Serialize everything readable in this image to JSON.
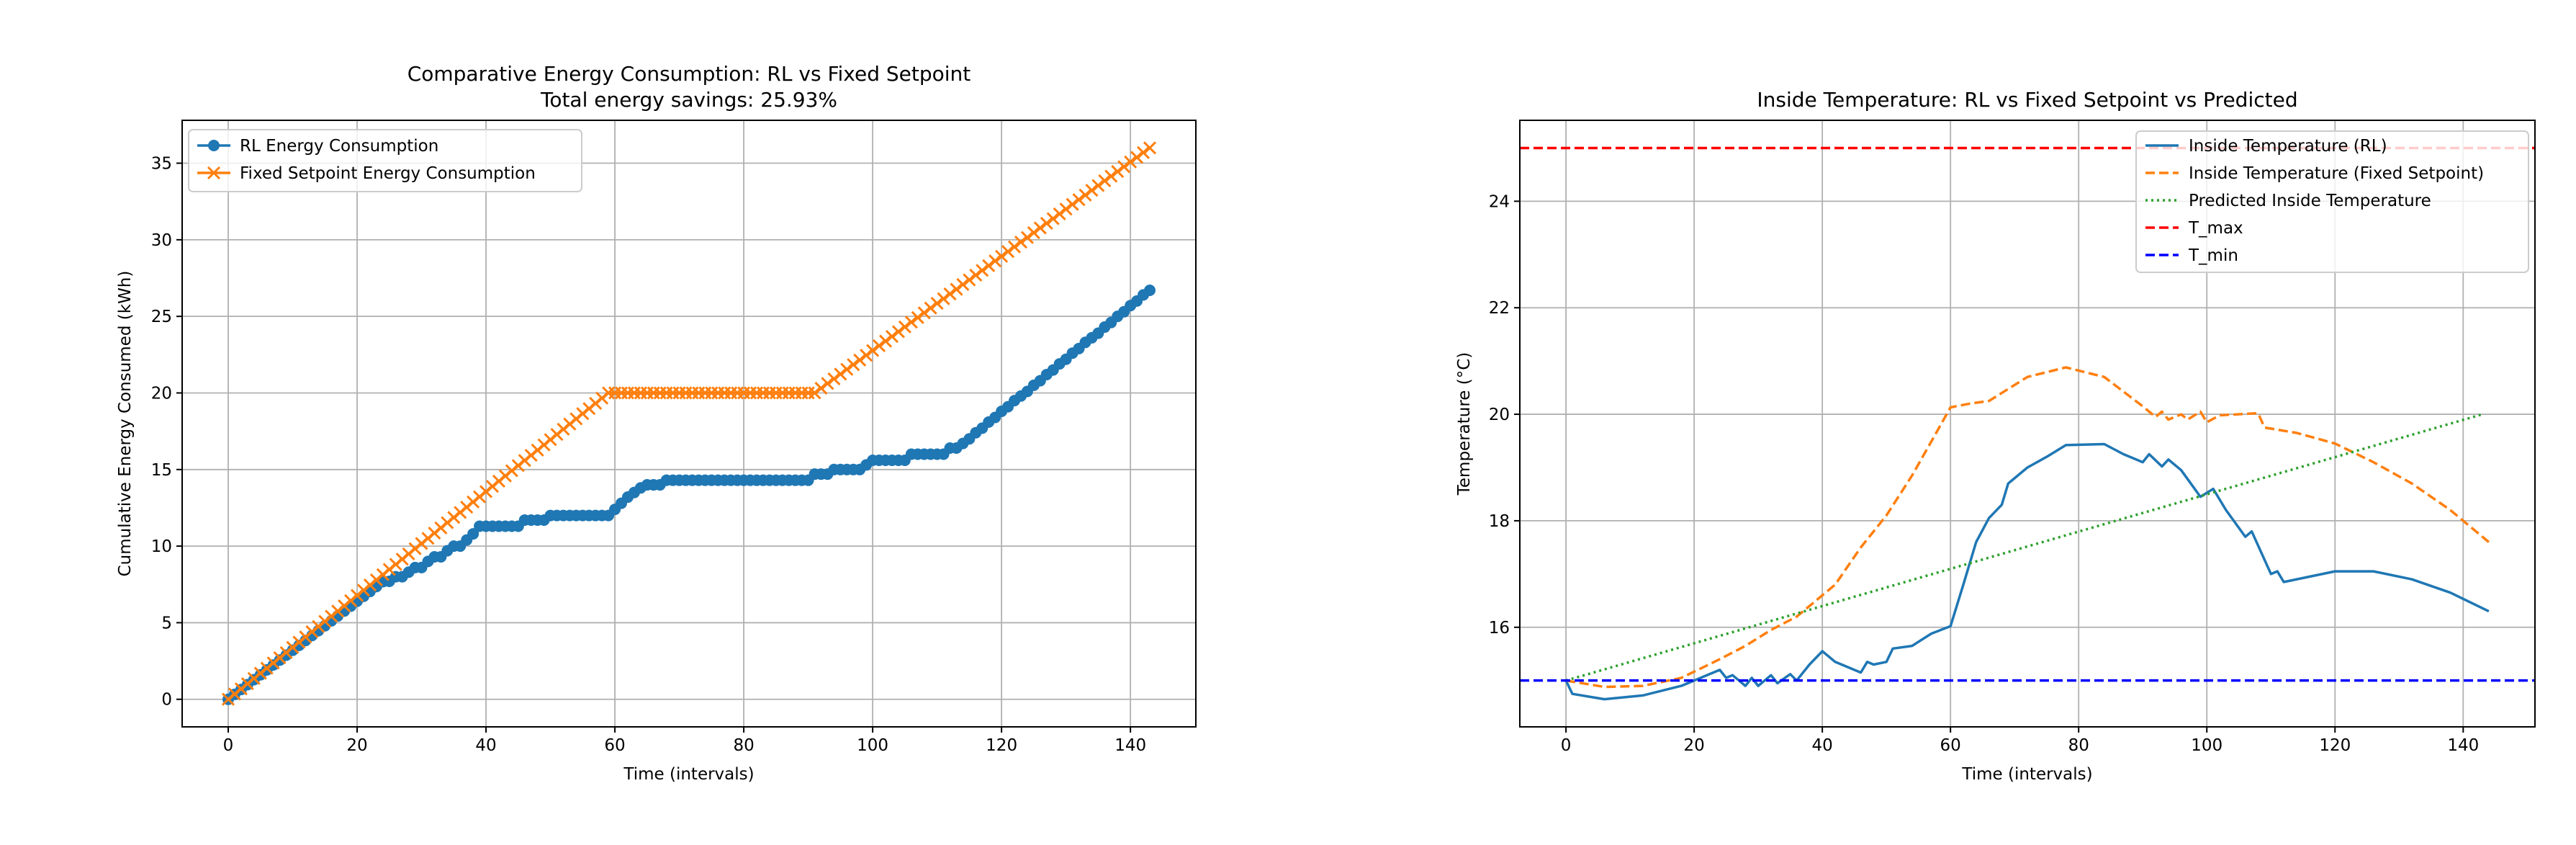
{
  "chart_data": [
    {
      "type": "line",
      "title": "Comparative Energy Consumption: RL vs Fixed Setpoint",
      "subtitle": "Total energy savings: 25.93%",
      "xlabel": "Time (intervals)",
      "ylabel": "Cumulative Energy Consumed (kWh)",
      "xlim": [
        -7.15,
        150.15
      ],
      "ylim": [
        -1.8,
        37.8
      ],
      "xticks": [
        0,
        20,
        40,
        60,
        80,
        100,
        120,
        140
      ],
      "yticks": [
        0,
        5,
        10,
        15,
        20,
        25,
        30,
        35
      ],
      "grid": true,
      "legend_position": "top-left",
      "x_start": 0,
      "x_step": 1,
      "series": [
        {
          "name": "RL Energy Consumption",
          "color": "#1f77b4",
          "marker": "circle",
          "values": [
            0,
            0.32,
            0.64,
            0.96,
            1.28,
            1.6,
            1.92,
            2.24,
            2.56,
            2.88,
            3.2,
            3.52,
            3.84,
            4.16,
            4.48,
            4.8,
            5.12,
            5.44,
            5.76,
            6.08,
            6.4,
            6.72,
            7.04,
            7.36,
            7.68,
            7.7,
            8.0,
            8.0,
            8.3,
            8.6,
            8.6,
            9.0,
            9.3,
            9.3,
            9.7,
            10.0,
            10.0,
            10.4,
            10.8,
            11.3,
            11.3,
            11.3,
            11.3,
            11.3,
            11.3,
            11.3,
            11.7,
            11.7,
            11.7,
            11.7,
            12.0,
            12.0,
            12.0,
            12.0,
            12.0,
            12.0,
            12.0,
            12.0,
            12.0,
            12.0,
            12.4,
            12.8,
            13.2,
            13.5,
            13.8,
            14.0,
            14.0,
            14.0,
            14.3,
            14.3,
            14.3,
            14.3,
            14.3,
            14.3,
            14.3,
            14.3,
            14.3,
            14.3,
            14.3,
            14.3,
            14.3,
            14.3,
            14.3,
            14.3,
            14.3,
            14.3,
            14.3,
            14.3,
            14.3,
            14.3,
            14.3,
            14.7,
            14.7,
            14.7,
            15.0,
            15.0,
            15.0,
            15.0,
            15.0,
            15.3,
            15.6,
            15.6,
            15.6,
            15.6,
            15.6,
            15.6,
            16.0,
            16.0,
            16.0,
            16.0,
            16.0,
            16.0,
            16.4,
            16.4,
            16.7,
            17.0,
            17.4,
            17.7,
            18.1,
            18.4,
            18.8,
            19.1,
            19.5,
            19.8,
            20.1,
            20.5,
            20.8,
            21.2,
            21.5,
            21.9,
            22.2,
            22.6,
            22.9,
            23.3,
            23.6,
            23.9,
            24.3,
            24.6,
            25.0,
            25.3,
            25.7,
            26.0,
            26.4,
            26.7
          ]
        },
        {
          "name": "Fixed Setpoint Energy Consumption",
          "color": "#ff7f0e",
          "marker": "x",
          "values": [
            0,
            0.34,
            0.68,
            1.02,
            1.36,
            1.7,
            2.03,
            2.37,
            2.71,
            3.05,
            3.39,
            3.73,
            4.07,
            4.41,
            4.75,
            5.09,
            5.42,
            5.76,
            6.1,
            6.44,
            6.78,
            7.12,
            7.46,
            7.8,
            8.14,
            8.48,
            8.81,
            9.15,
            9.49,
            9.83,
            10.17,
            10.51,
            10.85,
            11.19,
            11.53,
            11.87,
            12.2,
            12.54,
            12.88,
            13.22,
            13.56,
            13.9,
            14.24,
            14.58,
            14.92,
            15.26,
            15.59,
            15.93,
            16.27,
            16.61,
            16.95,
            17.29,
            17.63,
            17.97,
            18.31,
            18.65,
            18.98,
            19.32,
            19.66,
            20.0,
            20,
            20,
            20,
            20,
            20,
            20,
            20,
            20,
            20,
            20,
            20,
            20,
            20,
            20,
            20,
            20,
            20,
            20,
            20,
            20,
            20,
            20,
            20,
            20,
            20,
            20,
            20,
            20,
            20,
            20,
            20,
            20,
            20.31,
            20.62,
            20.92,
            21.23,
            21.54,
            21.85,
            22.15,
            22.46,
            22.77,
            23.08,
            23.38,
            23.69,
            24.0,
            24.31,
            24.62,
            24.92,
            25.23,
            25.54,
            25.85,
            26.15,
            26.46,
            26.77,
            27.08,
            27.38,
            27.69,
            28.0,
            28.31,
            28.62,
            28.92,
            29.23,
            29.54,
            29.85,
            30.15,
            30.46,
            30.77,
            31.08,
            31.38,
            31.69,
            32.0,
            32.31,
            32.62,
            32.92,
            33.23,
            33.54,
            33.85,
            34.15,
            34.46,
            34.77,
            35.08,
            35.38,
            35.69,
            36.0
          ]
        }
      ]
    },
    {
      "type": "line",
      "title": "Inside Temperature: RL vs Fixed Setpoint vs Predicted",
      "xlabel": "Time (intervals)",
      "ylabel": "Temperature (°C)",
      "xlim": [
        -7.2,
        151.2
      ],
      "ylim": [
        14.13,
        25.52
      ],
      "xticks": [
        0,
        20,
        40,
        60,
        80,
        100,
        120,
        140
      ],
      "yticks": [
        16,
        18,
        20,
        22,
        24
      ],
      "grid": true,
      "legend_position": "top-right",
      "series": [
        {
          "name": "Inside Temperature (RL)",
          "color": "#1f77b4",
          "style": "solid",
          "x": [
            0,
            1,
            6,
            12,
            18,
            20,
            24,
            25,
            26,
            27,
            28,
            29,
            30,
            32,
            33,
            35,
            36,
            38,
            40,
            42,
            46,
            47,
            48,
            50,
            51,
            54,
            57,
            60,
            62,
            64,
            66,
            68,
            69,
            72,
            75,
            78,
            84,
            87,
            90,
            91,
            93,
            94,
            96,
            99,
            101,
            103,
            106,
            107,
            110,
            111,
            112,
            116,
            120,
            126,
            132,
            138,
            144
          ],
          "y": [
            15.0,
            14.75,
            14.65,
            14.72,
            14.9,
            15.0,
            15.2,
            15.05,
            15.1,
            15.0,
            14.9,
            15.05,
            14.9,
            15.1,
            14.95,
            15.12,
            15.0,
            15.3,
            15.55,
            15.35,
            15.15,
            15.35,
            15.3,
            15.35,
            15.6,
            15.65,
            15.88,
            16.02,
            16.8,
            17.6,
            18.05,
            18.3,
            18.7,
            19.0,
            19.2,
            19.42,
            19.44,
            19.25,
            19.1,
            19.25,
            19.02,
            19.15,
            18.95,
            18.45,
            18.6,
            18.2,
            17.7,
            17.8,
            17.0,
            17.05,
            16.85,
            16.95,
            17.05,
            17.05,
            16.9,
            16.65,
            16.3
          ]
        },
        {
          "name": "Inside Temperature (Fixed Setpoint)",
          "color": "#ff7f0e",
          "style": "dashed",
          "x": [
            0,
            6,
            12,
            18,
            24,
            28,
            32,
            36,
            40,
            42,
            46,
            50,
            54,
            58,
            60,
            63,
            66,
            72,
            78,
            84,
            90,
            92,
            93,
            94,
            96,
            97,
            99,
            100,
            102,
            108,
            109,
            114,
            120,
            126,
            132,
            138,
            141,
            144
          ],
          "y": [
            15.0,
            14.88,
            14.9,
            15.05,
            15.4,
            15.65,
            15.95,
            16.2,
            16.6,
            16.8,
            17.5,
            18.1,
            18.85,
            19.7,
            20.13,
            20.2,
            20.25,
            20.7,
            20.88,
            20.7,
            20.15,
            19.95,
            20.05,
            19.9,
            20.0,
            19.9,
            20.05,
            19.85,
            19.98,
            20.02,
            19.75,
            19.65,
            19.45,
            19.1,
            18.7,
            18.2,
            17.9,
            17.6
          ]
        },
        {
          "name": "Predicted Inside Temperature",
          "color": "#2ca02c",
          "style": "dotted",
          "x": [
            0,
            143
          ],
          "y": [
            15.0,
            20.0
          ]
        },
        {
          "name": "T_max",
          "color": "#ff0000",
          "style": "dashed",
          "hline": 25
        },
        {
          "name": "T_min",
          "color": "#0000ff",
          "style": "dashed",
          "hline": 15
        }
      ]
    }
  ]
}
